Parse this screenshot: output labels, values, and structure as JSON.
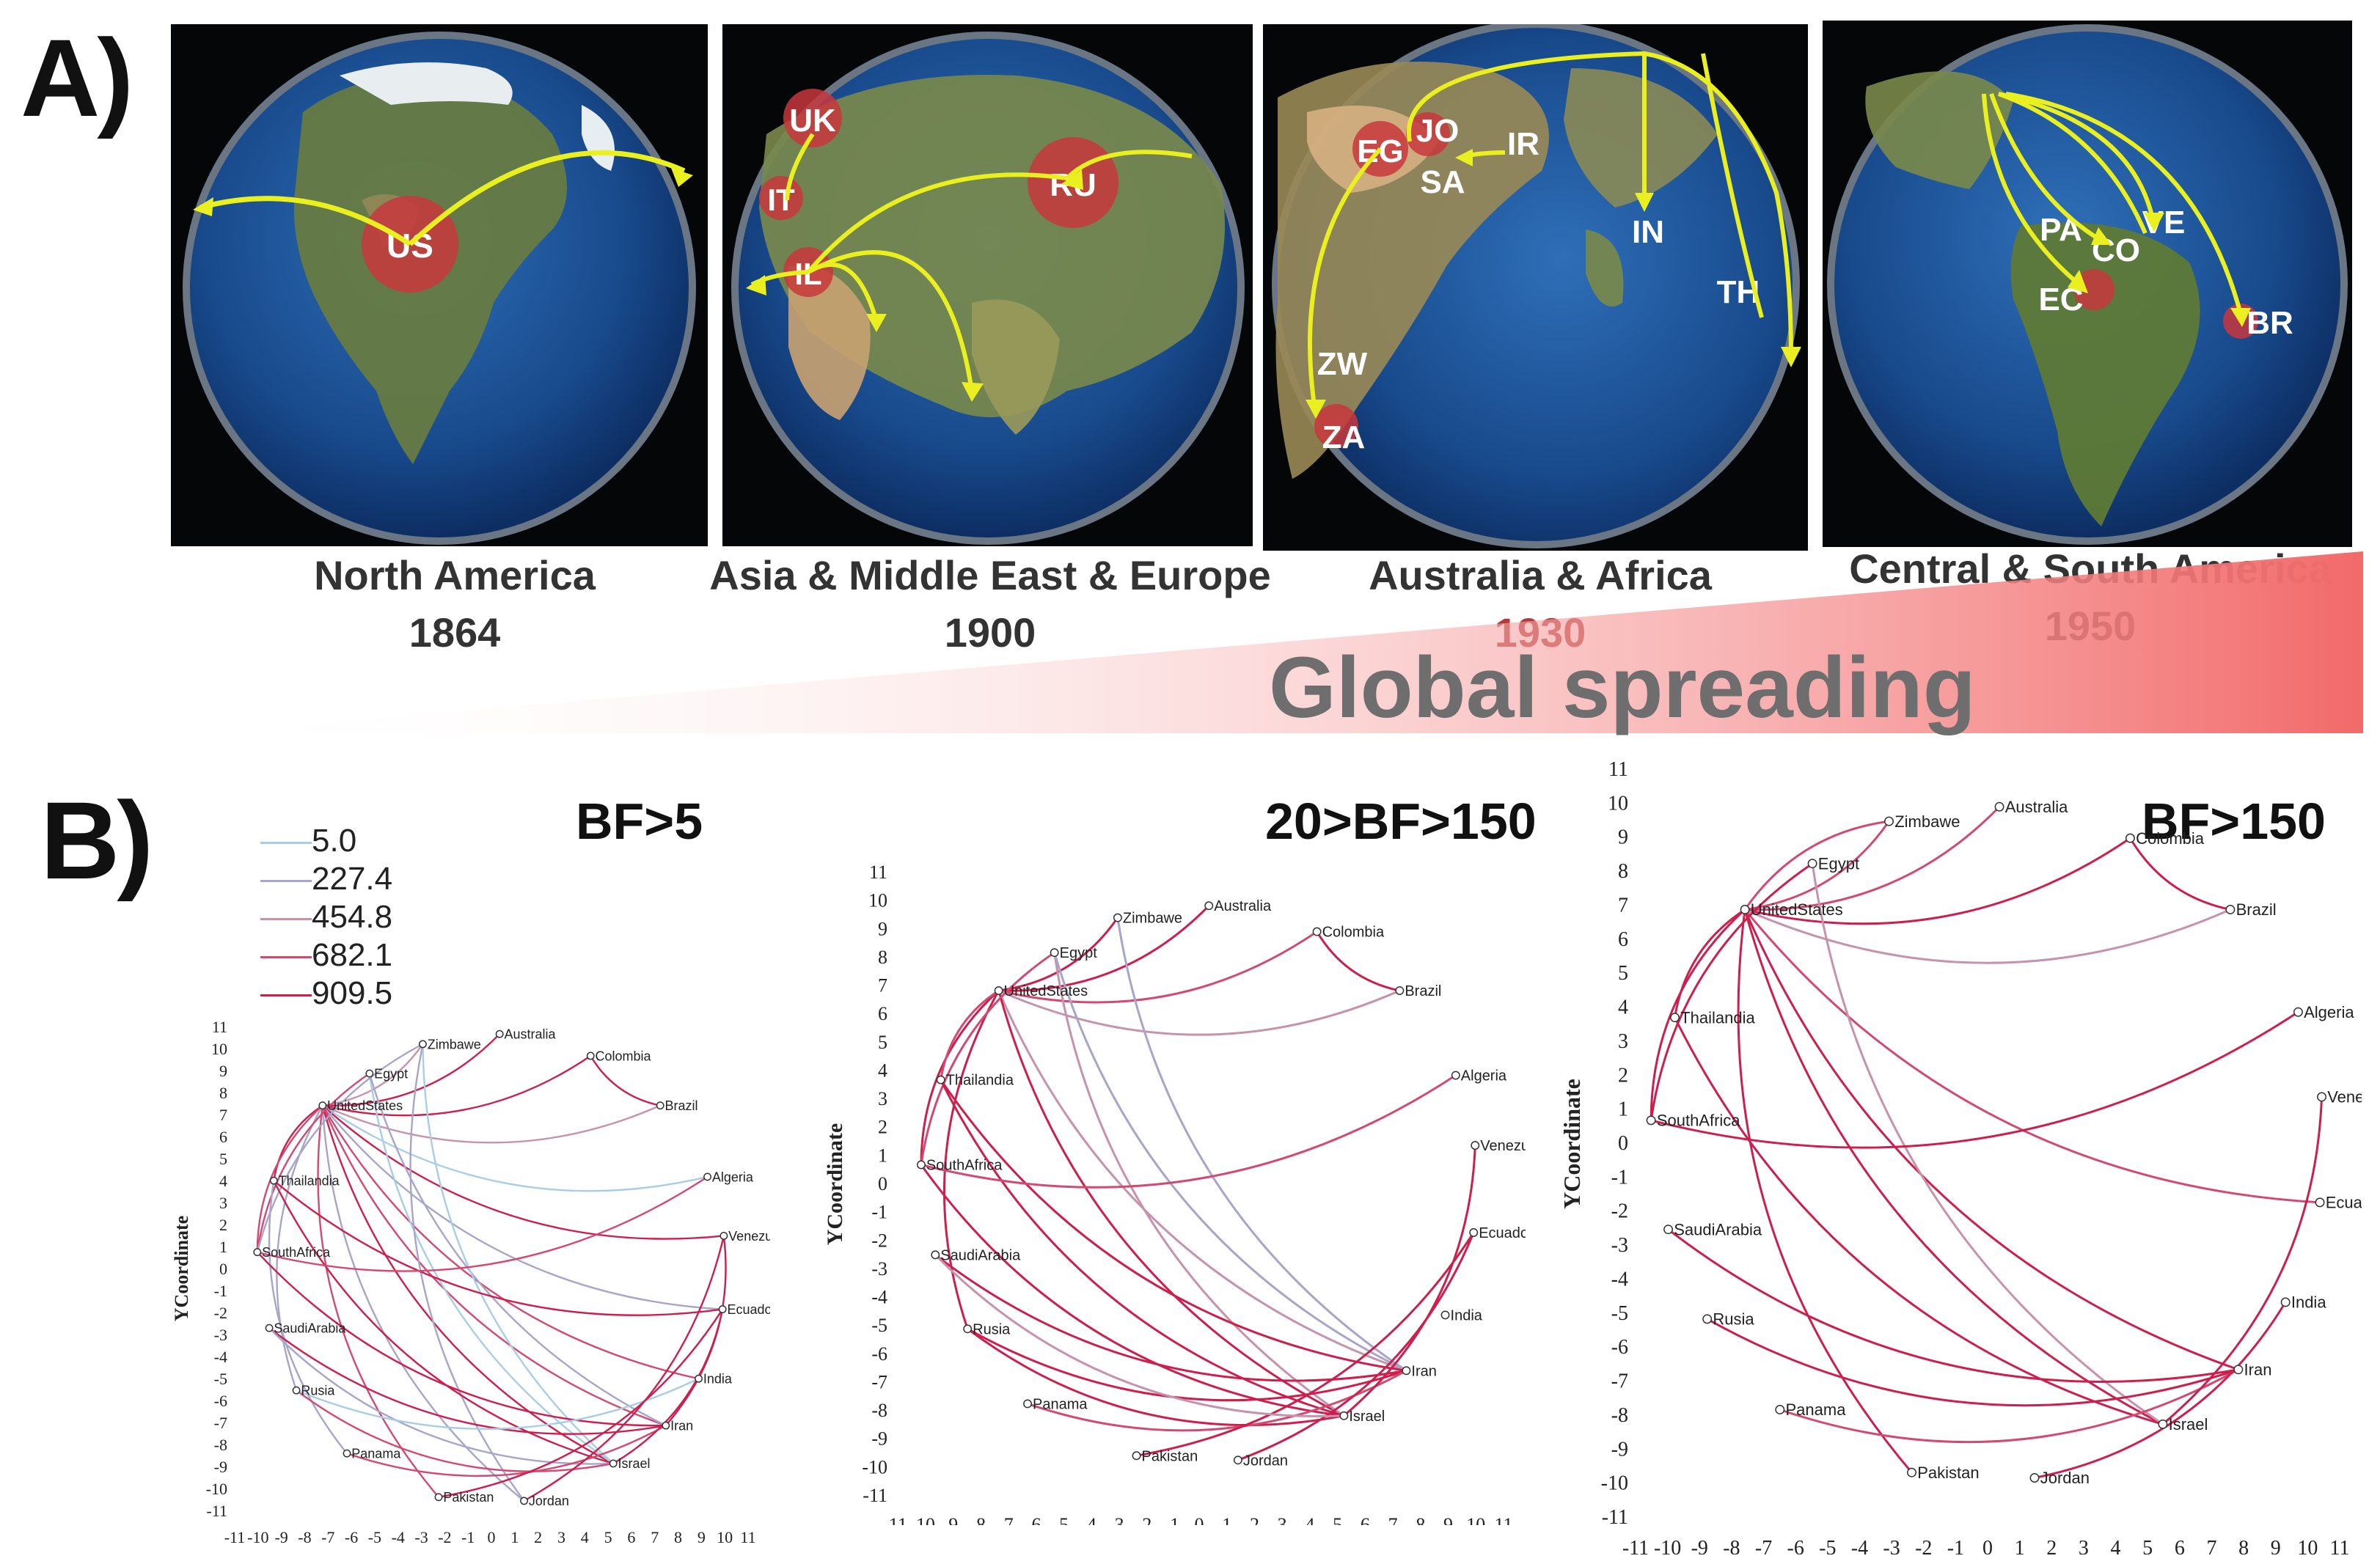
{
  "panel_a_label": "A)",
  "panel_b_label": "B)",
  "globes": [
    {
      "region": "North America",
      "year": "1864",
      "codes": [
        "US"
      ]
    },
    {
      "region": "Asia & Middle East & Europe",
      "year": "1900",
      "codes": [
        "UK",
        "IT",
        "IL",
        "RU"
      ]
    },
    {
      "region": "Australia  & Africa",
      "year": "1930",
      "codes": [
        "EG",
        "JO",
        "IR",
        "SA",
        "IN",
        "TH",
        "ZW",
        "ZA"
      ]
    },
    {
      "region": "Central & South America",
      "year": "1950",
      "codes": [
        "PA",
        "CO",
        "VE",
        "EC",
        "BR"
      ]
    }
  ],
  "global_spreading": "Global spreading",
  "legend": {
    "values": [
      "5.0",
      "227.4",
      "454.8",
      "682.1",
      "909.5"
    ],
    "colors": [
      "#a9cde6",
      "#a7a5c9",
      "#c792ac",
      "#d24a72",
      "#cc1f4e"
    ]
  },
  "networks": [
    {
      "title": "BF>5",
      "ylabel": "YCoordinate"
    },
    {
      "title": "20>BF>150",
      "ylabel": "YCoordinate"
    },
    {
      "title": "BF>150",
      "ylabel": "YCoordinate"
    }
  ],
  "nodes": [
    "Zimbawe",
    "Australia",
    "Colombia",
    "Brazil",
    "Egypt",
    "UnitedStates",
    "Algeria",
    "Thailandia",
    "Venezuela",
    "SouthAfrica",
    "Ecuador",
    "SaudiArabia",
    "India",
    "Rusia",
    "Iran",
    "Panama",
    "Israel",
    "Pakistan",
    "Jordan"
  ],
  "axis_ticks": {
    "x": [
      "-11",
      "-10",
      "-9",
      "-8",
      "-7",
      "-6",
      "-5",
      "-4",
      "-3",
      "-2",
      "-1",
      "0",
      "1",
      "2",
      "3",
      "4",
      "5",
      "6",
      "7",
      "8",
      "9",
      "10",
      "11"
    ],
    "y": [
      "11",
      "10",
      "9",
      "8",
      "7",
      "6",
      "5",
      "4",
      "3",
      "2",
      "1",
      "0",
      "-1",
      "-2",
      "-3",
      "-4",
      "-5",
      "-6",
      "-7",
      "-8",
      "-9",
      "-10",
      "-11"
    ]
  },
  "edges_bf5": [
    [
      "UnitedStates",
      "Zimbawe",
      2
    ],
    [
      "UnitedStates",
      "Australia",
      4
    ],
    [
      "UnitedStates",
      "Colombia",
      4
    ],
    [
      "UnitedStates",
      "Brazil",
      2
    ],
    [
      "UnitedStates",
      "Algeria",
      0
    ],
    [
      "UnitedStates",
      "Venezuela",
      4
    ],
    [
      "UnitedStates",
      "Ecuador",
      1
    ],
    [
      "UnitedStates",
      "India",
      3
    ],
    [
      "UnitedStates",
      "Iran",
      3
    ],
    [
      "UnitedStates",
      "Israel",
      4
    ],
    [
      "UnitedStates",
      "Jordan",
      1
    ],
    [
      "UnitedStates",
      "Pakistan",
      3
    ],
    [
      "UnitedStates",
      "Thailandia",
      4
    ],
    [
      "UnitedStates",
      "SouthAfrica",
      3
    ],
    [
      "UnitedStates",
      "Rusia",
      1
    ],
    [
      "Egypt",
      "Israel",
      0
    ],
    [
      "Egypt",
      "Iran",
      1
    ],
    [
      "Egypt",
      "SouthAfrica",
      3
    ],
    [
      "Zimbawe",
      "Israel",
      0
    ],
    [
      "Zimbawe",
      "Jordan",
      1
    ],
    [
      "Zimbawe",
      "SouthAfrica",
      1
    ],
    [
      "Thailandia",
      "Ecuador",
      4
    ],
    [
      "Thailandia",
      "Israel",
      4
    ],
    [
      "Thailandia",
      "Panama",
      1
    ],
    [
      "SouthAfrica",
      "Iran",
      4
    ],
    [
      "SouthAfrica",
      "Algeria",
      3
    ],
    [
      "SaudiArabia",
      "Iran",
      4
    ],
    [
      "SaudiArabia",
      "Israel",
      1
    ],
    [
      "Rusia",
      "Israel",
      3
    ],
    [
      "Rusia",
      "India",
      0
    ],
    [
      "Panama",
      "Iran",
      3
    ],
    [
      "Pakistan",
      "Ecuador",
      4
    ],
    [
      "Jordan",
      "Venezuela",
      4
    ],
    [
      "Israel",
      "Ecuador",
      4
    ],
    [
      "Iran",
      "Venezuela",
      4
    ],
    [
      "Colombia",
      "Brazil",
      4
    ]
  ],
  "edges_bf20": [
    [
      "UnitedStates",
      "Zimbawe",
      4
    ],
    [
      "UnitedStates",
      "Australia",
      4
    ],
    [
      "UnitedStates",
      "Colombia",
      3
    ],
    [
      "UnitedStates",
      "Brazil",
      2
    ],
    [
      "UnitedStates",
      "Iran",
      2
    ],
    [
      "UnitedStates",
      "Israel",
      4
    ],
    [
      "UnitedStates",
      "SouthAfrica",
      4
    ],
    [
      "UnitedStates",
      "Thailandia",
      3
    ],
    [
      "UnitedStates",
      "Rusia",
      4
    ],
    [
      "Egypt",
      "Israel",
      2
    ],
    [
      "Egypt",
      "Iran",
      1
    ],
    [
      "Egypt",
      "SouthAfrica",
      3
    ],
    [
      "Zimbawe",
      "Iran",
      1
    ],
    [
      "Thailandia",
      "Israel",
      4
    ],
    [
      "Thailandia",
      "Iran",
      4
    ],
    [
      "SouthAfrica",
      "Algeria",
      3
    ],
    [
      "SouthAfrica",
      "Israel",
      4
    ],
    [
      "SaudiArabia",
      "Iran",
      4
    ],
    [
      "Rusia",
      "Iran",
      4
    ],
    [
      "Rusia",
      "Israel",
      4
    ],
    [
      "Panama",
      "Iran",
      3
    ],
    [
      "Jordan",
      "Ecuador",
      4
    ],
    [
      "Pakistan",
      "Ecuador",
      4
    ],
    [
      "Israel",
      "Venezuela",
      4
    ],
    [
      "Colombia",
      "Brazil",
      4
    ],
    [
      "SaudiArabia",
      "Israel",
      2
    ]
  ],
  "edges_bf150": [
    [
      "UnitedStates",
      "Zimbawe",
      3
    ],
    [
      "UnitedStates",
      "Australia",
      3
    ],
    [
      "UnitedStates",
      "Colombia",
      4
    ],
    [
      "UnitedStates",
      "Brazil",
      2
    ],
    [
      "UnitedStates",
      "Iran",
      4
    ],
    [
      "UnitedStates",
      "Israel",
      4
    ],
    [
      "UnitedStates",
      "SouthAfrica",
      4
    ],
    [
      "UnitedStates",
      "Thailandia",
      4
    ],
    [
      "UnitedStates",
      "Ecuador",
      3
    ],
    [
      "UnitedStates",
      "Pakistan",
      4
    ],
    [
      "Egypt",
      "Israel",
      2
    ],
    [
      "Egypt",
      "SouthAfrica",
      4
    ],
    [
      "Thailandia",
      "Israel",
      4
    ],
    [
      "SouthAfrica",
      "Algeria",
      4
    ],
    [
      "SaudiArabia",
      "Iran",
      4
    ],
    [
      "Rusia",
      "Iran",
      4
    ],
    [
      "Panama",
      "Iran",
      3
    ],
    [
      "Jordan",
      "India",
      4
    ],
    [
      "Israel",
      "Venezuela",
      4
    ],
    [
      "Colombia",
      "Brazil",
      4
    ],
    [
      "Zimbawe",
      "UnitedStates",
      3
    ]
  ]
}
